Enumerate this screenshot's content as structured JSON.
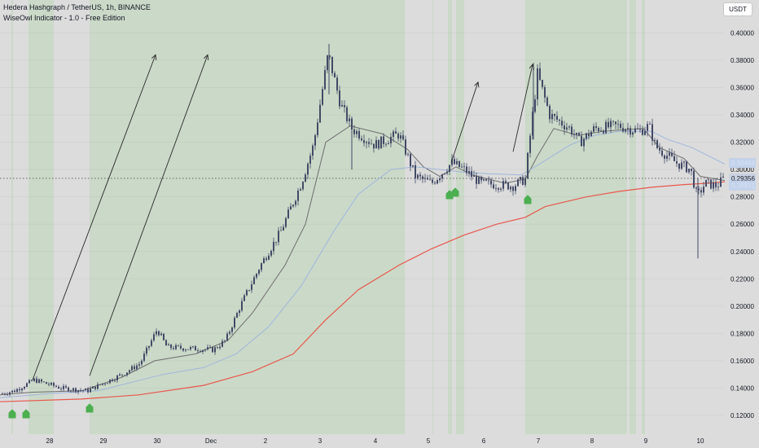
{
  "header": {
    "title": "Hedera Hashgraph / TetherUS, 1h, BINANCE",
    "indicator": "WiseOwl Indicator - 1.0 - Free Edition"
  },
  "currency_button": "USDT",
  "colors": {
    "background": "#dcdcdc",
    "highlight_zone": "#cbd9c8",
    "candle": "#434a66",
    "ema_fast": "#6e6e6e",
    "ema_mid": "#9fb6dd",
    "ema_slow": "#e8574b",
    "signal": "#4caf50",
    "arrow": "#2a2a2a"
  },
  "chart_data": {
    "type": "candlestick",
    "x_tick_labels": [
      "28",
      "29",
      "30",
      "Dec",
      "2",
      "3",
      "4",
      "5",
      "6",
      "7",
      "8",
      "9",
      "10"
    ],
    "y_tick_labels": [
      "0.40000",
      "0.38000",
      "0.36000",
      "0.34000",
      "0.32000",
      "0.30000",
      "0.28000",
      "0.26000",
      "0.24000",
      "0.22000",
      "0.20000",
      "0.18000",
      "0.16000",
      "0.14000",
      "0.12000"
    ],
    "ylim": [
      0.112,
      0.423
    ],
    "price_labels": [
      {
        "name": "ema-upper-label",
        "value": "0.30484",
        "color": "#9fb6dd",
        "text_color": "#d6e2f5",
        "bg": "#c3d2ea"
      },
      {
        "name": "last-price-label",
        "value": "0.29356",
        "color": "#131722",
        "text_color": "#131722",
        "bg": "#c8d2e2"
      },
      {
        "name": "ema-lower-label",
        "value": "0.28831",
        "color": "#9fb6dd",
        "text_color": "#d6e2f5",
        "bg": "#c3d2ea"
      }
    ],
    "last_price": 0.29356,
    "trend": [
      [
        0.136,
        3
      ],
      [
        0.138,
        18
      ],
      [
        0.146,
        42
      ],
      [
        0.14,
        75
      ],
      [
        0.138,
        107
      ],
      [
        0.15,
        150
      ],
      [
        0.158,
        172
      ],
      [
        0.183,
        193
      ],
      [
        0.17,
        205
      ],
      [
        0.168,
        262
      ],
      [
        0.175,
        277
      ],
      [
        0.2,
        295
      ],
      [
        0.23,
        320
      ],
      [
        0.255,
        345
      ],
      [
        0.29,
        370
      ],
      [
        0.318,
        385
      ],
      [
        0.385,
        403
      ],
      [
        0.348,
        418
      ],
      [
        0.33,
        432
      ],
      [
        0.318,
        460
      ],
      [
        0.326,
        490
      ],
      [
        0.295,
        510
      ],
      [
        0.29,
        530
      ],
      [
        0.305,
        555
      ],
      [
        0.3,
        570
      ],
      [
        0.29,
        590
      ],
      [
        0.288,
        630
      ],
      [
        0.293,
        645
      ],
      [
        0.33,
        652
      ],
      [
        0.37,
        660
      ],
      [
        0.34,
        675
      ],
      [
        0.33,
        700
      ],
      [
        0.32,
        712
      ],
      [
        0.33,
        730
      ],
      [
        0.332,
        760
      ],
      [
        0.328,
        785
      ],
      [
        0.332,
        797
      ],
      [
        0.317,
        805
      ],
      [
        0.305,
        830
      ],
      [
        0.3,
        848
      ],
      [
        0.28,
        856
      ],
      [
        0.29,
        866
      ],
      [
        0.288,
        880
      ],
      [
        0.293,
        888
      ]
    ],
    "spikes": [
      {
        "x": 404,
        "high": 0.392,
        "low": 0.355
      },
      {
        "x": 432,
        "high": 0.332,
        "low": 0.3
      },
      {
        "x": 655,
        "high": 0.378,
        "low": 0.322
      },
      {
        "x": 857,
        "high": 0.294,
        "low": 0.235
      }
    ],
    "series": [
      {
        "key": "ema_fast",
        "points": [
          [
            0.135,
            0
          ],
          [
            0.137,
            40
          ],
          [
            0.138,
            100
          ],
          [
            0.148,
            150
          ],
          [
            0.16,
            190
          ],
          [
            0.165,
            240
          ],
          [
            0.175,
            280
          ],
          [
            0.195,
            310
          ],
          [
            0.23,
            350
          ],
          [
            0.26,
            375
          ],
          [
            0.32,
            400
          ],
          [
            0.332,
            430
          ],
          [
            0.326,
            470
          ],
          [
            0.315,
            500
          ],
          [
            0.302,
            520
          ],
          [
            0.295,
            540
          ],
          [
            0.302,
            560
          ],
          [
            0.296,
            580
          ],
          [
            0.29,
            620
          ],
          [
            0.293,
            645
          ],
          [
            0.31,
            660
          ],
          [
            0.33,
            680
          ],
          [
            0.325,
            710
          ],
          [
            0.328,
            740
          ],
          [
            0.33,
            790
          ],
          [
            0.316,
            810
          ],
          [
            0.308,
            840
          ],
          [
            0.295,
            860
          ],
          [
            0.292,
            890
          ]
        ]
      },
      {
        "key": "ema_mid",
        "points": [
          [
            0.133,
            0
          ],
          [
            0.136,
            60
          ],
          [
            0.138,
            120
          ],
          [
            0.144,
            160
          ],
          [
            0.15,
            200
          ],
          [
            0.155,
            250
          ],
          [
            0.165,
            290
          ],
          [
            0.185,
            330
          ],
          [
            0.215,
            370
          ],
          [
            0.255,
            410
          ],
          [
            0.282,
            440
          ],
          [
            0.3,
            480
          ],
          [
            0.302,
            510
          ],
          [
            0.3,
            540
          ],
          [
            0.298,
            570
          ],
          [
            0.297,
            600
          ],
          [
            0.296,
            640
          ],
          [
            0.305,
            665
          ],
          [
            0.318,
            700
          ],
          [
            0.325,
            730
          ],
          [
            0.328,
            760
          ],
          [
            0.328,
            800
          ],
          [
            0.322,
            820
          ],
          [
            0.316,
            850
          ],
          [
            0.307,
            880
          ],
          [
            0.304,
            890
          ]
        ]
      },
      {
        "key": "ema_slow",
        "points": [
          [
            0.13,
            0
          ],
          [
            0.132,
            100
          ],
          [
            0.135,
            170
          ],
          [
            0.142,
            250
          ],
          [
            0.152,
            310
          ],
          [
            0.165,
            360
          ],
          [
            0.19,
            400
          ],
          [
            0.212,
            440
          ],
          [
            0.23,
            490
          ],
          [
            0.242,
            530
          ],
          [
            0.252,
            570
          ],
          [
            0.26,
            610
          ],
          [
            0.265,
            645
          ],
          [
            0.273,
            670
          ],
          [
            0.28,
            720
          ],
          [
            0.284,
            760
          ],
          [
            0.287,
            800
          ],
          [
            0.289,
            840
          ],
          [
            0.29,
            870
          ],
          [
            0.291,
            890
          ]
        ]
      }
    ],
    "highlight_zones": [
      [
        14,
        16
      ],
      [
        35,
        66
      ],
      [
        110,
        497
      ],
      [
        531,
        532
      ],
      [
        550,
        555
      ],
      [
        560,
        570
      ],
      [
        645,
        770
      ],
      [
        773,
        781
      ],
      [
        788,
        792
      ]
    ],
    "signals": [
      15,
      32,
      110,
      552,
      559,
      648
    ],
    "arrows": [
      {
        "from": [
          0.146,
          40
        ],
        "to": [
          0.384,
          191
        ]
      },
      {
        "from": [
          0.149,
          110
        ],
        "to": [
          0.384,
          255
        ]
      },
      {
        "from": [
          0.305,
          554
        ],
        "to": [
          0.364,
          587
        ]
      },
      {
        "from": [
          0.313,
          630
        ],
        "to": [
          0.377,
          654
        ]
      }
    ]
  }
}
